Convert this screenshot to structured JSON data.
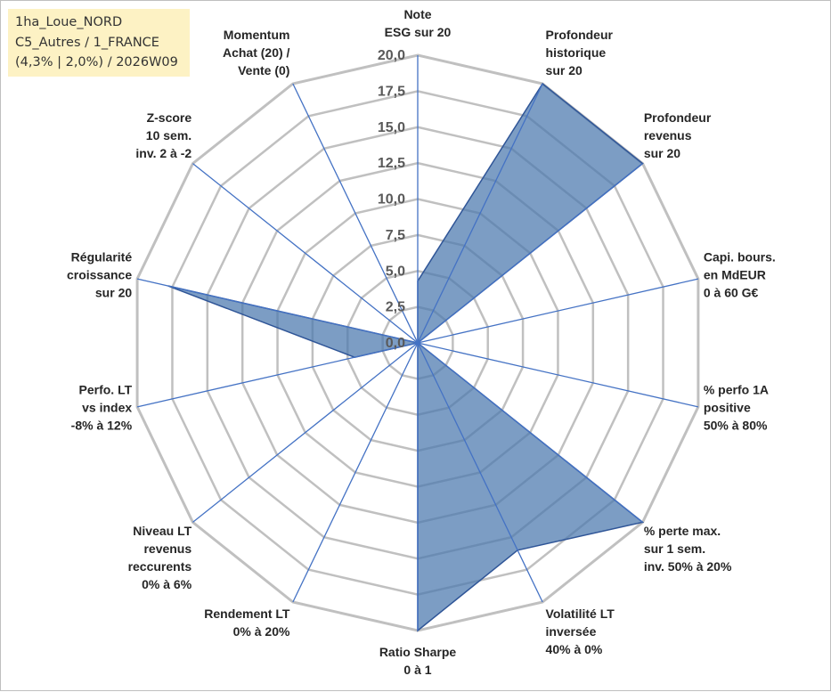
{
  "info_box": {
    "line1": "1ha_Loue_NORD",
    "line2": "C5_Autres / 1_FRANCE",
    "line3": "(4,3% | 2,0%) / 2026W09"
  },
  "colors": {
    "fill": "#4a77ad",
    "stroke": "#2f5597",
    "grid": "#c0c0c0",
    "spoke": "#4472c4",
    "info_bg": "#fdf2c4"
  },
  "chart_data": {
    "type": "radar",
    "title": "",
    "rmin": 0,
    "rmax": 20,
    "ticks": [
      "0,0",
      "2,5",
      "5,0",
      "7,5",
      "10,0",
      "12,5",
      "15,0",
      "17,5",
      "20,0"
    ],
    "categories": [
      [
        "Note",
        "ESG sur 20"
      ],
      [
        "Profondeur",
        "historique",
        "sur 20"
      ],
      [
        "Profondeur",
        "revenus",
        "sur 20"
      ],
      [
        "Capi. bours.",
        "en MdEUR",
        "0 à 60 G€"
      ],
      [
        "% perfo 1A",
        "positive",
        "50% à 80%"
      ],
      [
        "% perte max.",
        "sur 1 sem.",
        "inv. 50% à 20%"
      ],
      [
        "Volatilité LT",
        "inversée",
        "40% à 0%"
      ],
      [
        "Ratio Sharpe",
        "0 à 1"
      ],
      [
        "Rendement LT",
        "0% à 20%"
      ],
      [
        "Niveau LT",
        "revenus",
        "reccurents",
        "0% à 6%"
      ],
      [
        "Perfo. LT",
        "vs index",
        "-8% à 12%"
      ],
      [
        "Régularité",
        "croissance",
        "sur 20"
      ],
      [
        "Z-score",
        "10 sem.",
        "inv. 2 à -2"
      ],
      [
        "Momentum",
        "Achat (20) /",
        "Vente (0)"
      ]
    ],
    "series": [
      {
        "values": [
          4.3,
          20,
          20,
          0,
          0,
          20,
          16,
          20,
          0,
          0,
          4.5,
          17.8,
          0,
          0
        ]
      }
    ],
    "grid": true,
    "legend": "none"
  }
}
